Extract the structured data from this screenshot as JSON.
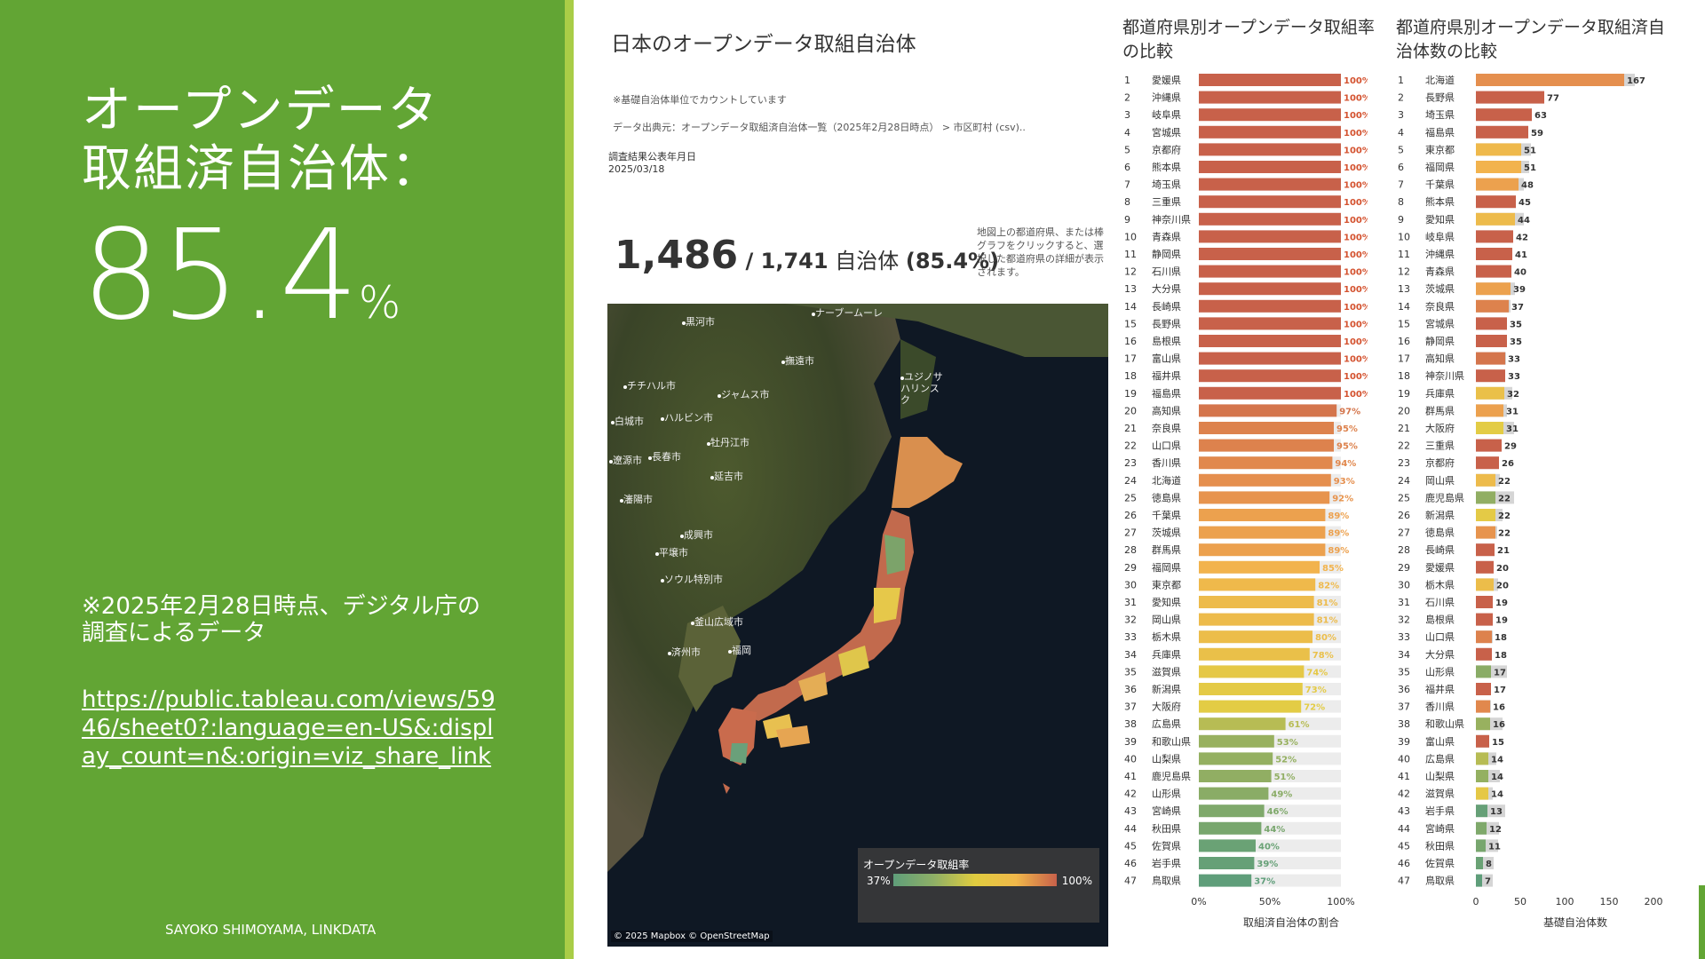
{
  "slide": {
    "heading_line1": "オープンデータ",
    "heading_line2": "取組済自治体：",
    "big_value": "85.4",
    "big_unit": "%",
    "note": "※2025年2月28日時点、デジタル庁の調査によるデータ",
    "link": "https://public.tableau.com/views/5946/sheet0?:language=en-US&:display_count=n&:origin=viz_share_link",
    "credit": "SAYOKO SHIMOYAMA, LINKDATA",
    "colors": {
      "green": "#62a534",
      "stripe": "#a9cd47"
    }
  },
  "dashboard": {
    "title": "日本のオープンデータ取組自治体",
    "note1": "※基礎自治体単位でカウントしています",
    "source": "データ出典元：オープンデータ取組済自治体一覧（2025年2月28日時点） > 市区町村 (csv)..",
    "date_label": "調査結果公表年月日",
    "date_value": "2025/03/18",
    "count": "1,486",
    "total": " / 1,741",
    "unit": " 自治体 ",
    "ratio": "(85.4%)",
    "hint": "地図上の都道府県、または棒グラフをクリックすると、選択した都道府県の詳細が表示されます。",
    "map": {
      "legend_title": "オープンデータ取組率",
      "legend_min": "37%",
      "legend_max": "100%",
      "copyright": "© 2025 Mapbox © OpenStreetMap",
      "cities": [
        "黒河市",
        "チチハル市",
        "ハルビン市",
        "白城市",
        "長春市",
        "遼源市",
        "瀋陽市",
        "牡丹江市",
        "延吉市",
        "ジャムス市",
        "撫遠市",
        "ユジノサハリンスク",
        "成興市",
        "平壌市",
        "ソウル特別市",
        "釜山広域市",
        "済州市",
        "ナーブームーレ",
        "福岡"
      ]
    }
  },
  "chart_data": [
    {
      "type": "bar",
      "orientation": "horizontal",
      "title": "都道府県別オープンデータ取組率の比較",
      "xlabel": "取組済自治体の割合",
      "xlim": [
        0,
        100
      ],
      "xticks": [
        "0%",
        "50%",
        "100%"
      ],
      "categories": [
        "愛媛県",
        "沖縄県",
        "岐阜県",
        "宮城県",
        "京都府",
        "熊本県",
        "埼玉県",
        "三重県",
        "神奈川県",
        "青森県",
        "静岡県",
        "石川県",
        "大分県",
        "長崎県",
        "長野県",
        "島根県",
        "富山県",
        "福井県",
        "福島県",
        "高知県",
        "奈良県",
        "山口県",
        "香川県",
        "北海道",
        "徳島県",
        "千葉県",
        "茨城県",
        "群馬県",
        "福岡県",
        "東京都",
        "愛知県",
        "岡山県",
        "栃木県",
        "兵庫県",
        "滋賀県",
        "新潟県",
        "大阪府",
        "広島県",
        "和歌山県",
        "山梨県",
        "鹿児島県",
        "山形県",
        "宮崎県",
        "秋田県",
        "佐賀県",
        "岩手県",
        "鳥取県"
      ],
      "values": [
        100,
        100,
        100,
        100,
        100,
        100,
        100,
        100,
        100,
        100,
        100,
        100,
        100,
        100,
        100,
        100,
        100,
        100,
        100,
        97,
        95,
        95,
        94,
        93,
        92,
        89,
        89,
        89,
        85,
        82,
        81,
        81,
        80,
        78,
        74,
        73,
        72,
        61,
        53,
        52,
        51,
        49,
        46,
        44,
        40,
        39,
        37
      ]
    },
    {
      "type": "bar",
      "orientation": "horizontal",
      "title": "都道府県別オープンデータ取組済自治体数の比較",
      "xlabel": "基礎自治体数",
      "xlim": [
        0,
        200
      ],
      "xticks": [
        "0",
        "50",
        "100",
        "150",
        "200"
      ],
      "categories": [
        "北海道",
        "長野県",
        "埼玉県",
        "福島県",
        "東京都",
        "福岡県",
        "千葉県",
        "熊本県",
        "愛知県",
        "岐阜県",
        "沖縄県",
        "青森県",
        "茨城県",
        "奈良県",
        "宮城県",
        "静岡県",
        "高知県",
        "神奈川県",
        "兵庫県",
        "群馬県",
        "大阪府",
        "三重県",
        "京都府",
        "岡山県",
        "鹿児島県",
        "新潟県",
        "徳島県",
        "長崎県",
        "愛媛県",
        "栃木県",
        "石川県",
        "島根県",
        "山口県",
        "大分県",
        "山形県",
        "福井県",
        "香川県",
        "和歌山県",
        "富山県",
        "広島県",
        "山梨県",
        "滋賀県",
        "岩手県",
        "宮崎県",
        "秋田県",
        "佐賀県",
        "鳥取県"
      ],
      "values": [
        167,
        77,
        63,
        59,
        51,
        51,
        48,
        45,
        44,
        42,
        41,
        40,
        39,
        37,
        35,
        35,
        33,
        33,
        32,
        31,
        31,
        29,
        26,
        22,
        22,
        22,
        22,
        21,
        20,
        20,
        19,
        19,
        18,
        18,
        17,
        17,
        16,
        16,
        15,
        14,
        14,
        14,
        13,
        12,
        11,
        8,
        7
      ],
      "totals": [
        179,
        77,
        63,
        59,
        62,
        60,
        54,
        45,
        54,
        42,
        41,
        40,
        44,
        39,
        35,
        35,
        34,
        33,
        41,
        35,
        43,
        29,
        26,
        27,
        43,
        30,
        24,
        21,
        20,
        25,
        19,
        19,
        19,
        18,
        35,
        17,
        17,
        30,
        15,
        23,
        27,
        19,
        33,
        26,
        25,
        20,
        19
      ]
    }
  ]
}
